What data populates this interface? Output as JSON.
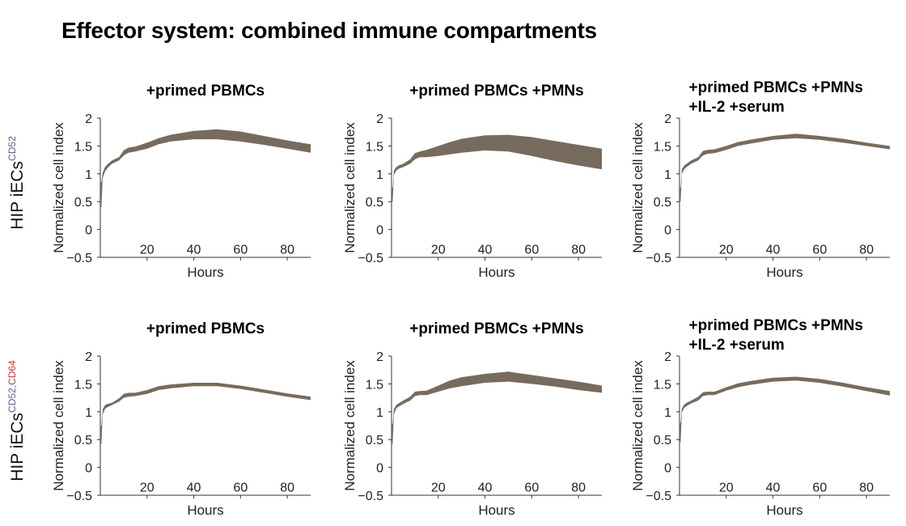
{
  "figure": {
    "title": "Effector system: combined immune compartments"
  },
  "rows": [
    {
      "label_main": "HIP iECs",
      "label_sup_1": "CD52",
      "label_sup_sep": "",
      "label_sup_2": ""
    },
    {
      "label_main": "HIP iECs",
      "label_sup_1": "CD52",
      "label_sup_sep": ",",
      "label_sup_2": "CD64"
    }
  ],
  "colors": {
    "band": "#766b5d",
    "cd52": "#5a5f8f",
    "cd64": "#c0392b"
  },
  "chart_data": [
    {
      "type": "area",
      "row": 0,
      "col": 0,
      "title_lines": [
        "+primed PBMCs"
      ],
      "xlabel": "Hours",
      "ylabel": "Normalized cell index",
      "xlim": [
        0,
        90
      ],
      "ylim": [
        -0.5,
        2
      ],
      "xticks": [
        20,
        40,
        60,
        80
      ],
      "yticks": [
        -0.5,
        0,
        0.5,
        1,
        1.5,
        2
      ],
      "x": [
        0,
        0.5,
        1,
        2,
        3,
        5,
        8,
        10,
        12,
        15,
        20,
        25,
        30,
        40,
        50,
        60,
        70,
        80,
        90
      ],
      "lower": [
        0.4,
        0.4,
        0.92,
        1.04,
        1.1,
        1.18,
        1.24,
        1.33,
        1.38,
        1.4,
        1.45,
        1.53,
        1.58,
        1.62,
        1.62,
        1.58,
        1.52,
        1.45,
        1.38
      ],
      "upper": [
        0.85,
        0.85,
        1.02,
        1.12,
        1.17,
        1.24,
        1.3,
        1.42,
        1.47,
        1.49,
        1.56,
        1.64,
        1.7,
        1.77,
        1.8,
        1.76,
        1.68,
        1.6,
        1.53
      ]
    },
    {
      "type": "area",
      "row": 0,
      "col": 1,
      "title_lines": [
        "+primed PBMCs +PMNs"
      ],
      "xlabel": "Hours",
      "ylabel": "Normalized cell index",
      "xlim": [
        0,
        90
      ],
      "ylim": [
        -0.5,
        2
      ],
      "xticks": [
        20,
        40,
        60,
        80
      ],
      "yticks": [
        -0.5,
        0,
        0.5,
        1,
        1.5,
        2
      ],
      "x": [
        0,
        0.5,
        1,
        2,
        3,
        5,
        8,
        10,
        12,
        15,
        20,
        25,
        30,
        40,
        50,
        60,
        70,
        80,
        90
      ],
      "lower": [
        0.5,
        0.5,
        0.98,
        1.06,
        1.09,
        1.12,
        1.18,
        1.26,
        1.3,
        1.3,
        1.32,
        1.35,
        1.38,
        1.42,
        1.4,
        1.32,
        1.23,
        1.15,
        1.08
      ],
      "upper": [
        0.75,
        0.75,
        1.06,
        1.12,
        1.15,
        1.18,
        1.26,
        1.37,
        1.4,
        1.43,
        1.5,
        1.57,
        1.63,
        1.69,
        1.7,
        1.66,
        1.59,
        1.52,
        1.45
      ]
    },
    {
      "type": "area",
      "row": 0,
      "col": 2,
      "title_lines": [
        "+primed PBMCs +PMNs",
        "+IL-2 +serum"
      ],
      "xlabel": "Hours",
      "ylabel": "Normalized cell index",
      "xlim": [
        0,
        90
      ],
      "ylim": [
        -0.5,
        2
      ],
      "xticks": [
        20,
        40,
        60,
        80
      ],
      "yticks": [
        -0.5,
        0,
        0.5,
        1,
        1.5,
        2
      ],
      "x": [
        0,
        0.5,
        1,
        2,
        3,
        5,
        8,
        10,
        12,
        15,
        20,
        25,
        30,
        40,
        50,
        60,
        70,
        80,
        90
      ],
      "lower": [
        0.5,
        0.5,
        1.0,
        1.08,
        1.12,
        1.18,
        1.24,
        1.33,
        1.36,
        1.37,
        1.43,
        1.5,
        1.54,
        1.61,
        1.64,
        1.61,
        1.56,
        1.5,
        1.44
      ],
      "upper": [
        0.75,
        0.75,
        1.08,
        1.15,
        1.18,
        1.24,
        1.3,
        1.41,
        1.43,
        1.44,
        1.5,
        1.57,
        1.61,
        1.68,
        1.72,
        1.68,
        1.63,
        1.56,
        1.5
      ]
    },
    {
      "type": "area",
      "row": 1,
      "col": 0,
      "title_lines": [
        "+primed PBMCs"
      ],
      "xlabel": "Hours",
      "ylabel": "Normalized cell index",
      "xlim": [
        0,
        90
      ],
      "ylim": [
        -0.5,
        2
      ],
      "xticks": [
        20,
        40,
        60,
        80
      ],
      "yticks": [
        -0.5,
        0,
        0.5,
        1,
        1.5,
        2
      ],
      "x": [
        0,
        0.5,
        1,
        2,
        3,
        5,
        8,
        10,
        12,
        15,
        20,
        25,
        30,
        40,
        50,
        60,
        70,
        80,
        90
      ],
      "lower": [
        0.42,
        0.42,
        0.95,
        1.05,
        1.08,
        1.12,
        1.18,
        1.25,
        1.27,
        1.28,
        1.32,
        1.39,
        1.42,
        1.46,
        1.46,
        1.41,
        1.34,
        1.27,
        1.21
      ],
      "upper": [
        0.75,
        0.75,
        1.04,
        1.12,
        1.14,
        1.16,
        1.24,
        1.32,
        1.34,
        1.34,
        1.39,
        1.46,
        1.49,
        1.52,
        1.52,
        1.47,
        1.4,
        1.33,
        1.27
      ]
    },
    {
      "type": "area",
      "row": 1,
      "col": 1,
      "title_lines": [
        "+primed PBMCs +PMNs"
      ],
      "xlabel": "Hours",
      "ylabel": "Normalized cell index",
      "xlim": [
        0,
        90
      ],
      "ylim": [
        -0.5,
        2
      ],
      "xticks": [
        20,
        40,
        60,
        80
      ],
      "yticks": [
        -0.5,
        0,
        0.5,
        1,
        1.5,
        2
      ],
      "x": [
        0,
        0.5,
        1,
        2,
        3,
        5,
        8,
        10,
        12,
        15,
        20,
        25,
        30,
        40,
        50,
        60,
        70,
        80,
        90
      ],
      "lower": [
        0.42,
        0.42,
        0.95,
        1.06,
        1.09,
        1.14,
        1.2,
        1.28,
        1.3,
        1.3,
        1.36,
        1.42,
        1.46,
        1.52,
        1.54,
        1.5,
        1.45,
        1.39,
        1.34
      ],
      "upper": [
        0.78,
        0.78,
        1.05,
        1.12,
        1.15,
        1.2,
        1.27,
        1.36,
        1.37,
        1.38,
        1.47,
        1.56,
        1.62,
        1.68,
        1.72,
        1.66,
        1.6,
        1.54,
        1.47
      ]
    },
    {
      "type": "area",
      "row": 1,
      "col": 2,
      "title_lines": [
        "+primed PBMCs +PMNs",
        "+IL-2 +serum"
      ],
      "xlabel": "Hours",
      "ylabel": "Normalized cell index",
      "xlim": [
        0,
        90
      ],
      "ylim": [
        -0.5,
        2
      ],
      "xticks": [
        20,
        40,
        60,
        80
      ],
      "yticks": [
        -0.5,
        0,
        0.5,
        1,
        1.5,
        2
      ],
      "x": [
        0,
        0.5,
        1,
        2,
        3,
        5,
        8,
        10,
        12,
        15,
        20,
        25,
        30,
        40,
        50,
        60,
        70,
        80,
        90
      ],
      "lower": [
        0.45,
        0.45,
        0.98,
        1.07,
        1.1,
        1.15,
        1.2,
        1.28,
        1.3,
        1.3,
        1.38,
        1.44,
        1.48,
        1.54,
        1.56,
        1.52,
        1.45,
        1.37,
        1.29
      ],
      "upper": [
        0.8,
        0.8,
        1.06,
        1.13,
        1.16,
        1.2,
        1.27,
        1.35,
        1.36,
        1.36,
        1.44,
        1.51,
        1.55,
        1.61,
        1.63,
        1.59,
        1.52,
        1.44,
        1.37
      ]
    }
  ]
}
